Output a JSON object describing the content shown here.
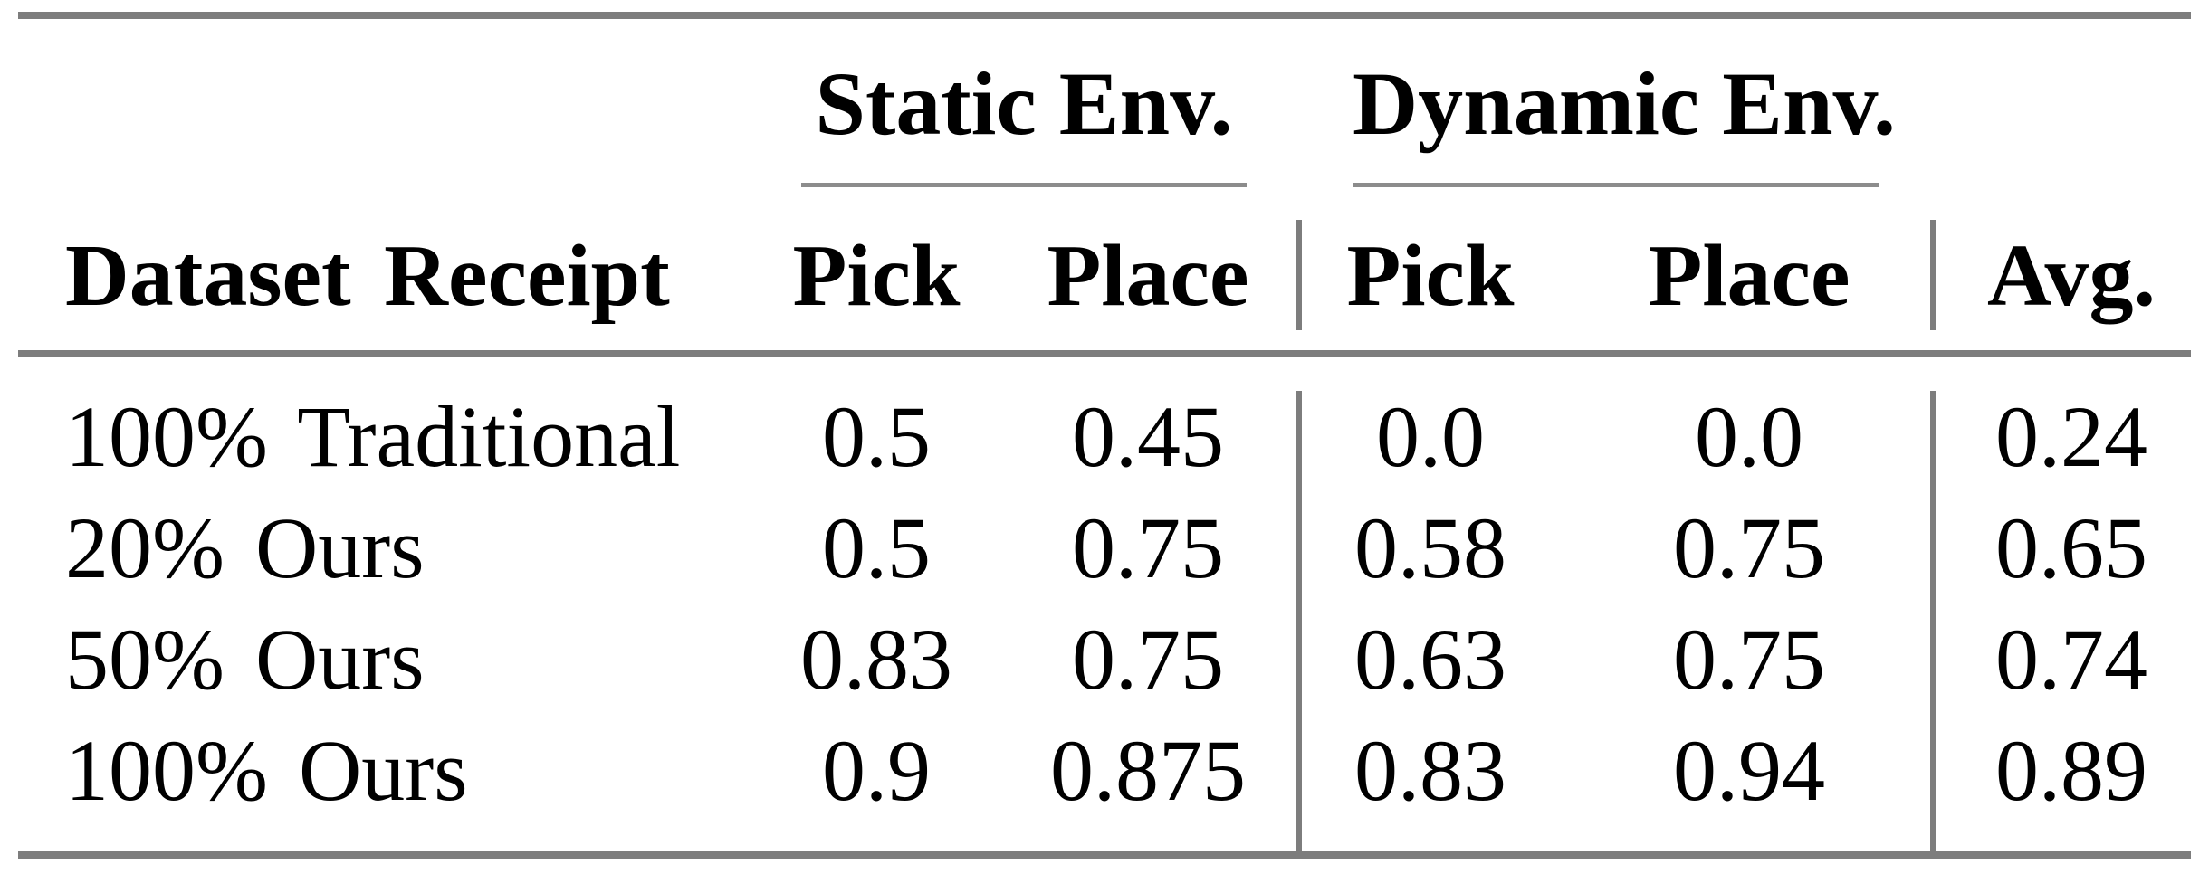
{
  "table": {
    "groups": [
      {
        "label": "Static Env."
      },
      {
        "label": "Dynamic Env."
      }
    ],
    "columns": [
      "Dataset Receipt",
      "Pick",
      "Place",
      "Pick",
      "Place",
      "Avg."
    ],
    "rows": [
      {
        "cells": [
          "100% Traditional",
          "0.5",
          "0.45",
          "0.0",
          "0.0",
          "0.24"
        ]
      },
      {
        "cells": [
          "20% Ours",
          "0.5",
          "0.75",
          "0.58",
          "0.75",
          "0.65"
        ]
      },
      {
        "cells": [
          "50% Ours",
          "0.83",
          "0.75",
          "0.63",
          "0.75",
          "0.74"
        ]
      },
      {
        "cells": [
          "100% Ours",
          "0.9",
          "0.875",
          "0.83",
          "0.94",
          "0.89"
        ]
      }
    ],
    "colors": {
      "rule_gray": "#7d7d7d",
      "cmidrule_gray": "#8c8c8c",
      "text": "#000000",
      "background": "#ffffff"
    }
  },
  "chart_data": {
    "type": "table",
    "title": "",
    "column_groups": [
      "",
      "Static Env.",
      "Static Env.",
      "Dynamic Env.",
      "Dynamic Env.",
      ""
    ],
    "columns": [
      "Dataset Receipt",
      "Pick",
      "Place",
      "Pick",
      "Place",
      "Avg."
    ],
    "rows": [
      [
        "100% Traditional",
        0.5,
        0.45,
        0.0,
        0.0,
        0.24
      ],
      [
        "20% Ours",
        0.5,
        0.75,
        0.58,
        0.75,
        0.65
      ],
      [
        "50% Ours",
        0.83,
        0.75,
        0.63,
        0.75,
        0.74
      ],
      [
        "100% Ours",
        0.9,
        0.875,
        0.83,
        0.94,
        0.89
      ]
    ]
  }
}
